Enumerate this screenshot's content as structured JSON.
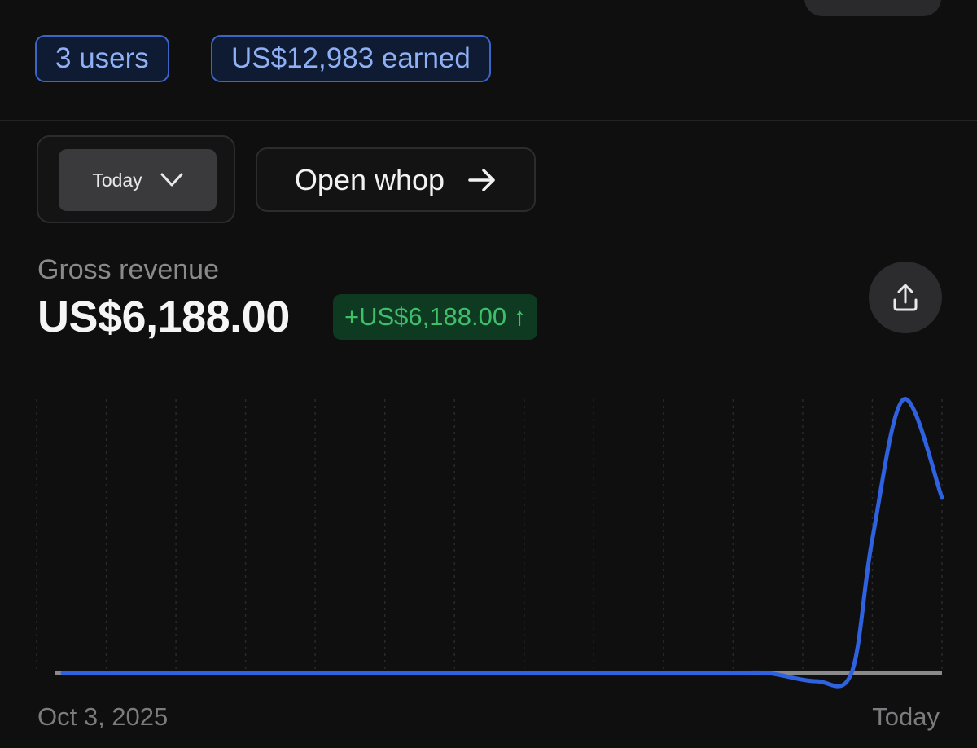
{
  "stats": {
    "users": "3 users",
    "earned": "US$12,983 earned"
  },
  "controls": {
    "period": "Today",
    "open_label": "Open whop"
  },
  "metric": {
    "label": "Gross revenue",
    "value": "US$6,188.00",
    "delta": "+US$6,188.00 ↑"
  },
  "colors": {
    "accent": "#2f62e0",
    "positive": "#3fbf6a",
    "badge_border": "#3b66c8"
  },
  "icons": {
    "period": "chevron-down-icon",
    "open": "arrow-right-icon",
    "share": "share-icon"
  },
  "chart_data": {
    "type": "line",
    "x_labels": [
      "Oct 3, 2025",
      "Today"
    ],
    "x": [
      0,
      1,
      2,
      3,
      4,
      5,
      6,
      7,
      8,
      9,
      10,
      10.5,
      11.2,
      11.7,
      12,
      12.45,
      13
    ],
    "values": [
      0,
      0,
      0,
      0,
      0,
      0,
      0,
      0,
      0,
      0,
      0,
      0,
      -0.03,
      0,
      0.49,
      1.0,
      0.64
    ],
    "xlim": [
      0,
      13
    ],
    "ylim": [
      0,
      1
    ],
    "grid": "vertical-dotted",
    "color": "#2f62e0"
  }
}
